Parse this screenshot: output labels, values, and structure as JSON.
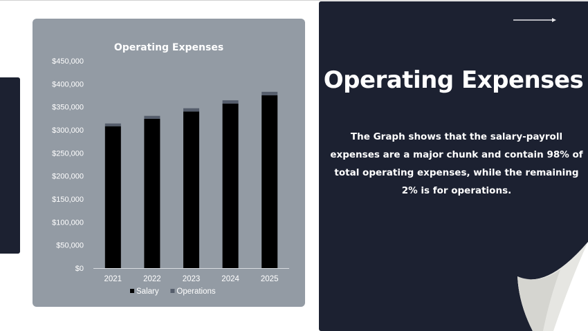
{
  "slide": {
    "heading": "Operating Expenses",
    "body": "The Graph shows that the salary-payroll expenses are a major chunk and contain 98% of total operating expenses, while the remaining 2% is for operations.",
    "colors": {
      "panel_dark": "#1c2131",
      "chart_bg": "#939ba4",
      "salary": "#000000",
      "operations": "#555d6b"
    }
  },
  "chart_data": {
    "type": "bar",
    "stacked": true,
    "title": "Operating Expenses",
    "categories": [
      "2021",
      "2022",
      "2023",
      "2024",
      "2025"
    ],
    "series": [
      {
        "name": "Salary",
        "color": "#000000",
        "values": [
          308000,
          324000,
          340000,
          357000,
          375000
        ]
      },
      {
        "name": "Operations",
        "color": "#555d6b",
        "values": [
          6000,
          6500,
          7000,
          7300,
          7700
        ]
      }
    ],
    "ylim": [
      0,
      450000
    ],
    "yticks": [
      0,
      50000,
      100000,
      150000,
      200000,
      250000,
      300000,
      350000,
      400000,
      450000
    ],
    "ytick_labels": [
      "$0",
      "$50,000",
      "$100,000",
      "$150,000",
      "$200,000",
      "$250,000",
      "$300,000",
      "$350,000",
      "$400,000",
      "$450,000"
    ],
    "xlabel": "",
    "ylabel": "",
    "grid": false,
    "legend": "bottom"
  }
}
